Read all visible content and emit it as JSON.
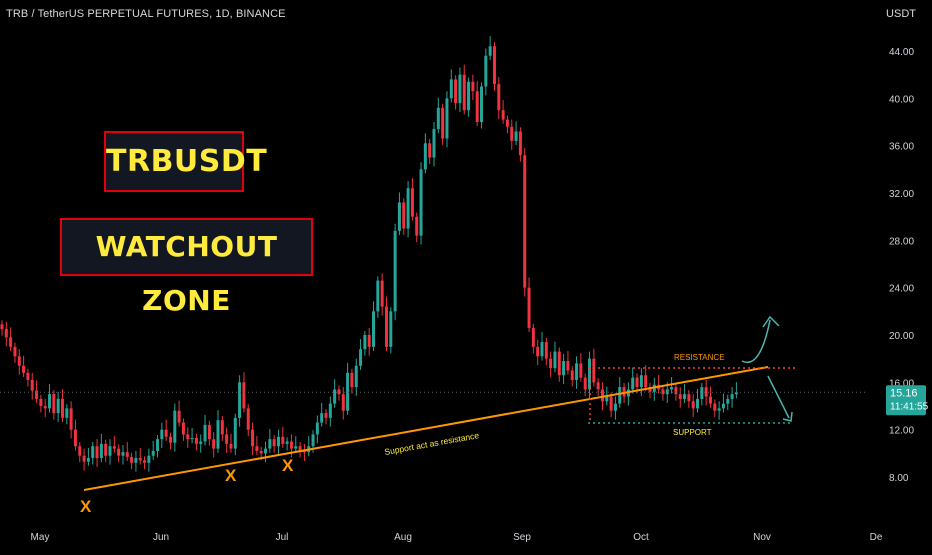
{
  "header": {
    "symbol_line": "TRB / TetherUS PERPETUAL FUTURES, 1D, BINANCE",
    "currency": "USDT"
  },
  "callouts": {
    "symbol": "TRBUSDT",
    "headline": "WATCHOUT ZONE"
  },
  "price_label": {
    "value": "15.16",
    "countdown": "11:41:55"
  },
  "colors": {
    "up": "#26a69a",
    "down": "#ef3340",
    "trendline": "#ff9800",
    "support": "#26a69a",
    "resistance": "#f44336",
    "arrows": "#4db6ac",
    "callout_border": "#e10010",
    "callout_text": "#ffeb3b"
  },
  "chart_data": {
    "type": "candlestick",
    "y_axis": {
      "ticks": [
        "44.00",
        "40.00",
        "36.00",
        "32.00",
        "28.00",
        "24.00",
        "20.00",
        "16.00",
        "12.00",
        "8.00"
      ],
      "range": [
        4.5,
        47
      ],
      "position": "right"
    },
    "x_axis": {
      "ticks": [
        "May",
        "Jun",
        "Jul",
        "Aug",
        "Sep",
        "Oct",
        "Nov",
        "De"
      ]
    },
    "series": [
      {
        "approx_daily_close": [
          20.5,
          19.8,
          19.0,
          18.2,
          17.4,
          16.8,
          16.2,
          15.3,
          14.6,
          14.0,
          13.8,
          15.0,
          13.4,
          14.6,
          13.0,
          13.8,
          12.0,
          10.6,
          9.8,
          9.3,
          9.6,
          10.6,
          9.6,
          10.8,
          9.8,
          10.6,
          10.4,
          9.8,
          10.1,
          9.7,
          9.2,
          9.6,
          9.4,
          9.2,
          9.8,
          10.2,
          11.2,
          12.0,
          11.4,
          10.9,
          13.6,
          12.6,
          11.6,
          11.2,
          11.3,
          10.8,
          11.0,
          12.4,
          11.2,
          10.4,
          12.8,
          11.6,
          10.8,
          10.4,
          13.0,
          16.0,
          13.8,
          12.0,
          10.6,
          10.2,
          10.0,
          10.4,
          11.2,
          10.6,
          11.4,
          10.8,
          11.0,
          10.4,
          10.6,
          10.2,
          10.1,
          10.6,
          11.6,
          12.6,
          13.4,
          13.0,
          14.2,
          15.4,
          15.0,
          13.6,
          16.8,
          15.6,
          17.4,
          18.8,
          20.0,
          19.0,
          22.0,
          24.6,
          22.4,
          19.0,
          22.0,
          28.8,
          31.2,
          29.0,
          32.4,
          30.0,
          28.4,
          34.0,
          36.2,
          35.0,
          37.4,
          39.2,
          36.6,
          40.0,
          41.6,
          39.6,
          42.0,
          39.0,
          41.4,
          40.6,
          38.0,
          41.0,
          43.6,
          44.4,
          41.2,
          39.0,
          38.2,
          37.6,
          36.4,
          37.2,
          35.2,
          24.0,
          20.6,
          19.0,
          18.2,
          19.4,
          18.0,
          17.2,
          18.6,
          16.6,
          17.8,
          17.0,
          16.2,
          17.6,
          16.4,
          15.4,
          18.0,
          16.0,
          15.4,
          14.4,
          14.8,
          13.6,
          14.2,
          15.6,
          14.8,
          15.4,
          16.4,
          15.6,
          16.6,
          15.6,
          15.2,
          15.8,
          15.4,
          15.0,
          15.4,
          15.6,
          15.0,
          14.6,
          15.0,
          14.4,
          13.8,
          14.6,
          15.6,
          14.8,
          14.2,
          13.6,
          13.8,
          14.2,
          14.6,
          15.0,
          15.16
        ]
      }
    ],
    "annotations": {
      "trendline_label": "Support act as resistance",
      "resistance_label": "RESISTANCE",
      "support_label": "SUPPORT",
      "markers": [
        "X",
        "X",
        "X"
      ]
    },
    "grid": false
  }
}
